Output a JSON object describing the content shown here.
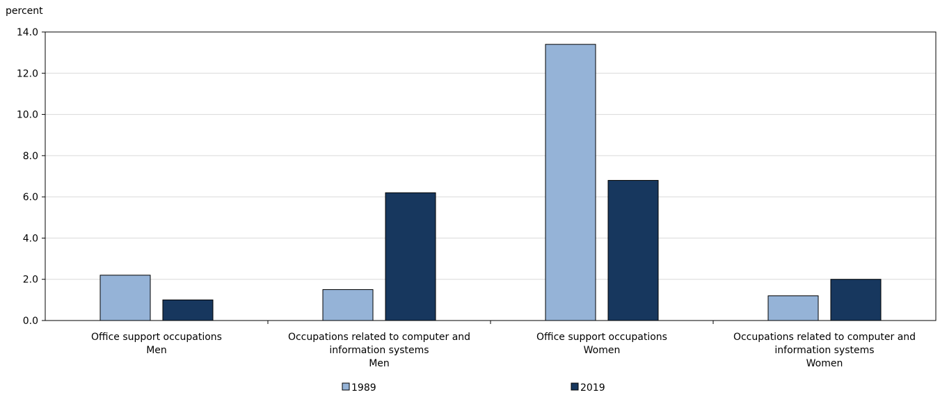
{
  "chart_data": {
    "type": "bar",
    "ylabel": "percent",
    "ylim": [
      0,
      14
    ],
    "yticks": [
      "0.0",
      "2.0",
      "4.0",
      "6.0",
      "8.0",
      "10.0",
      "12.0",
      "14.0"
    ],
    "categories": [
      [
        "Office support occupations",
        "Men"
      ],
      [
        "Occupations related to computer and",
        "information systems",
        "Men"
      ],
      [
        "Office support occupations",
        "Women"
      ],
      [
        "Occupations related to computer and",
        "information systems",
        "Women"
      ]
    ],
    "series": [
      {
        "name": "1989",
        "color": "#95b3d7",
        "values": [
          2.2,
          1.5,
          13.4,
          1.2
        ]
      },
      {
        "name": "2019",
        "color": "#17375e",
        "values": [
          1.0,
          6.2,
          6.8,
          2.0
        ]
      }
    ],
    "grid": true,
    "legend_position": "bottom"
  }
}
